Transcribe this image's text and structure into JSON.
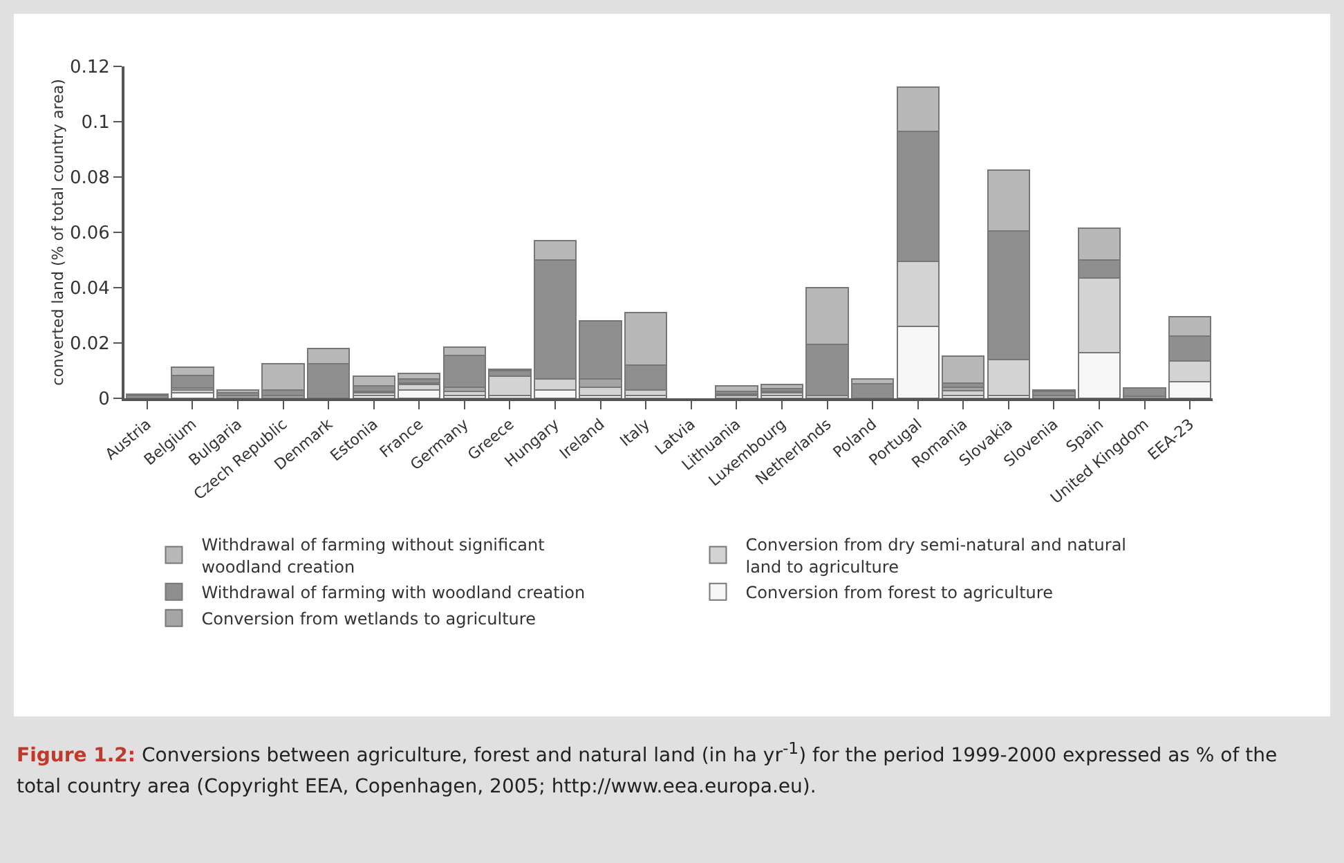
{
  "chart_data": {
    "type": "bar",
    "stacked": true,
    "ylabel": "converted land (% of total country area)",
    "categories": [
      "Austria",
      "Belgium",
      "Bulgaria",
      "Czech Republic",
      "Denmark",
      "Estonia",
      "France",
      "Germany",
      "Greece",
      "Hungary",
      "Ireland",
      "Italy",
      "Latvia",
      "Lithuania",
      "Luxembourg",
      "Netherlands",
      "Poland",
      "Portugal",
      "Romania",
      "Slovakia",
      "Slovenia",
      "Spain",
      "United Kingdom",
      "EEA-23"
    ],
    "series": [
      {
        "name": "Conversion from forest to agriculture",
        "color": "#f7f7f7",
        "values": [
          0,
          0.002,
          0,
          0,
          0,
          0.001,
          0.003,
          0.001,
          0.001,
          0.003,
          0.001,
          0.001,
          0,
          null,
          0.001,
          0,
          0,
          0.026,
          0.001,
          0.001,
          0,
          0.0165,
          0,
          0.006
        ]
      },
      {
        "name": "Conversion from dry semi-natural and natural land to agriculture",
        "color": "#d3d3d3",
        "values": [
          0,
          0.001,
          0,
          0,
          0,
          0.001,
          0.002,
          0.0015,
          0.007,
          0.004,
          0.003,
          0.002,
          0,
          0.001,
          0.001,
          0.001,
          0,
          0.0235,
          0.0017,
          0.013,
          0,
          0.027,
          0,
          0.0075
        ]
      },
      {
        "name": "Conversion from wetlands to agriculture",
        "color": "#a5a5a5",
        "values": [
          null,
          0.0007,
          0.001,
          0.001,
          0,
          0.0005,
          0.0005,
          0.0015,
          0,
          0,
          0.003,
          0,
          0,
          0.0005,
          0.0005,
          0,
          null,
          0,
          0.0014,
          0,
          0.001,
          0,
          0.0007,
          0
        ]
      },
      {
        "name": "Withdrawal of farming with woodland creation",
        "color": "#8f8f8f",
        "values": [
          0.001,
          0.0045,
          0.001,
          0.002,
          0.0125,
          0.002,
          0.0015,
          0.0115,
          0.002,
          0.043,
          0.021,
          0.009,
          0,
          0.001,
          0.001,
          0.0185,
          0.0053,
          0.047,
          0.0014,
          0.0465,
          0.0015,
          0.0065,
          0.003,
          0.009
        ]
      },
      {
        "name": "Withdrawal of farming without significant woodland creation",
        "color": "#b8b8b8",
        "values": [
          0.0005,
          0.003,
          0.001,
          0.0095,
          0.0055,
          0.0035,
          0.002,
          0.003,
          0.0005,
          0.007,
          0,
          0.019,
          0,
          0.002,
          0.0015,
          0.0205,
          0.0017,
          0.016,
          0.0098,
          0.022,
          0.0005,
          0.0115,
          0,
          0.007
        ]
      }
    ],
    "ylim": [
      0,
      0.12
    ],
    "yticks": [
      0,
      0.02,
      0.04,
      0.06,
      0.08,
      0.1,
      0.12
    ],
    "grid": false,
    "legend": "bottom",
    "annotations": [
      "Figure 1.2: Conversions between agriculture, forest and natural land (in ha yr$^{-1}$) for the period 1999-2000 expressed as % of the total country area (Copyright EEA, Copenhagen, 2005; http://www.eea.europa.eu)."
    ]
  }
}
